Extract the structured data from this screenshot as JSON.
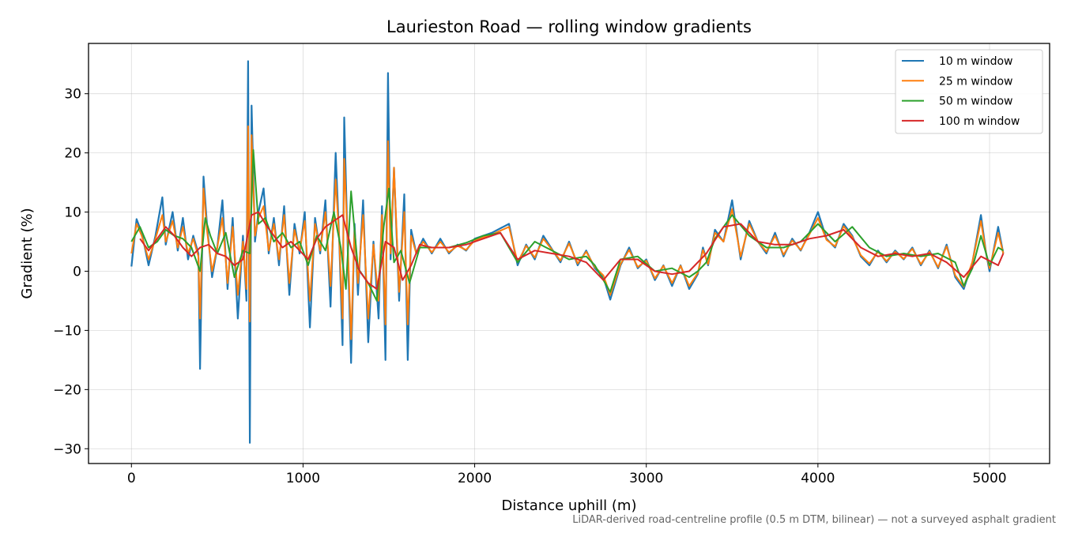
{
  "chart_data": {
    "type": "line",
    "title": "Laurieston Road — rolling window gradients",
    "xlabel": "Distance uphill (m)",
    "ylabel": "Gradient (%)",
    "xlim": [
      -250,
      5350
    ],
    "ylim": [
      -32.5,
      38.5
    ],
    "xticks": [
      0,
      1000,
      2000,
      3000,
      4000,
      5000
    ],
    "xtick_labels": [
      "0",
      "1000",
      "2000",
      "3000",
      "4000",
      "5000"
    ],
    "yticks": [
      -30,
      -20,
      -10,
      0,
      10,
      20,
      30
    ],
    "ytick_labels": [
      "−30",
      "−20",
      "−10",
      "0",
      "10",
      "20",
      "30"
    ],
    "grid": true,
    "legend_position": "top-right",
    "footnote": "LiDAR-derived road-centreline profile (0.5 m DTM, bilinear) — not a surveyed asphalt gradient",
    "series": [
      {
        "name": "10 m window",
        "color": "#1f77b4",
        "x": [
          0,
          30,
          60,
          100,
          140,
          180,
          200,
          240,
          270,
          300,
          330,
          360,
          390,
          400,
          420,
          440,
          470,
          500,
          530,
          560,
          590,
          620,
          650,
          670,
          680,
          690,
          700,
          720,
          740,
          770,
          800,
          830,
          860,
          890,
          920,
          950,
          980,
          1010,
          1040,
          1070,
          1100,
          1130,
          1160,
          1190,
          1210,
          1230,
          1240,
          1260,
          1280,
          1300,
          1320,
          1350,
          1380,
          1410,
          1440,
          1460,
          1480,
          1495,
          1510,
          1530,
          1560,
          1590,
          1610,
          1630,
          1660,
          1700,
          1750,
          1800,
          1850,
          1900,
          1950,
          2000,
          2100,
          2200,
          2250,
          2300,
          2350,
          2400,
          2500,
          2550,
          2600,
          2650,
          2700,
          2750,
          2790,
          2850,
          2900,
          2950,
          3000,
          3050,
          3100,
          3150,
          3200,
          3250,
          3300,
          3330,
          3360,
          3400,
          3450,
          3500,
          3550,
          3600,
          3650,
          3700,
          3750,
          3800,
          3850,
          3900,
          3950,
          4000,
          4050,
          4100,
          4150,
          4200,
          4250,
          4300,
          4350,
          4400,
          4450,
          4500,
          4550,
          4600,
          4650,
          4700,
          4750,
          4800,
          4850,
          4900,
          4950,
          4980,
          5000,
          5050,
          5080
        ],
        "values": [
          0.8,
          8.8,
          6.5,
          1.0,
          6.0,
          12.5,
          4.5,
          10.0,
          3.5,
          9.0,
          2.0,
          6.0,
          3.0,
          -16.5,
          16.0,
          8.0,
          -1.0,
          4.0,
          12.0,
          -3.0,
          9.0,
          -8.0,
          6.0,
          -5.0,
          35.5,
          -29.0,
          28.0,
          5.0,
          10.0,
          14.0,
          3.0,
          9.0,
          1.0,
          11.0,
          -4.0,
          8.0,
          3.0,
          10.0,
          -9.5,
          9.0,
          3.0,
          12.0,
          -6.0,
          20.0,
          6.0,
          -12.5,
          26.0,
          4.0,
          -15.5,
          8.0,
          -4.0,
          12.0,
          -12.0,
          5.0,
          -8.0,
          11.0,
          -15.0,
          33.5,
          2.0,
          17.5,
          -5.0,
          13.0,
          -15.0,
          7.0,
          3.0,
          5.5,
          3.0,
          5.5,
          3.0,
          4.5,
          3.5,
          5.5,
          6.5,
          8.0,
          1.0,
          4.5,
          2.0,
          6.0,
          1.5,
          5.0,
          1.0,
          3.5,
          0.5,
          -1.0,
          -4.8,
          1.0,
          4.0,
          0.5,
          2.0,
          -1.5,
          1.0,
          -2.5,
          1.0,
          -3.0,
          -0.5,
          4.0,
          1.0,
          7.0,
          5.0,
          12.0,
          2.0,
          8.5,
          5.0,
          3.0,
          6.5,
          2.5,
          5.5,
          3.5,
          6.5,
          10.0,
          5.5,
          4.0,
          8.0,
          6.0,
          2.5,
          1.0,
          3.5,
          1.5,
          3.5,
          2.0,
          4.0,
          1.0,
          3.5,
          0.5,
          4.5,
          -1.0,
          -3.0,
          1.5,
          9.5,
          3.0,
          0.0,
          7.5,
          3.0
        ]
      },
      {
        "name": "25 m window",
        "color": "#ff7f0e",
        "x": [
          0,
          30,
          60,
          100,
          140,
          180,
          200,
          240,
          270,
          300,
          330,
          360,
          390,
          400,
          420,
          440,
          470,
          500,
          530,
          560,
          590,
          620,
          650,
          670,
          680,
          690,
          700,
          720,
          740,
          770,
          800,
          830,
          860,
          890,
          920,
          950,
          980,
          1010,
          1040,
          1070,
          1100,
          1130,
          1160,
          1190,
          1210,
          1230,
          1240,
          1260,
          1280,
          1300,
          1320,
          1350,
          1380,
          1410,
          1440,
          1460,
          1480,
          1495,
          1510,
          1530,
          1560,
          1590,
          1610,
          1630,
          1660,
          1700,
          1750,
          1800,
          1850,
          1900,
          1950,
          2000,
          2100,
          2200,
          2250,
          2300,
          2350,
          2400,
          2500,
          2550,
          2600,
          2650,
          2700,
          2750,
          2790,
          2850,
          2900,
          2950,
          3000,
          3050,
          3100,
          3150,
          3200,
          3250,
          3300,
          3330,
          3360,
          3400,
          3450,
          3500,
          3550,
          3600,
          3650,
          3700,
          3750,
          3800,
          3850,
          3900,
          3950,
          4000,
          4050,
          4100,
          4150,
          4200,
          4250,
          4300,
          4350,
          4400,
          4450,
          4500,
          4550,
          4600,
          4650,
          4700,
          4750,
          4800,
          4850,
          4900,
          4950,
          4980,
          5000,
          5050,
          5080
        ],
        "values": [
          3.0,
          8.0,
          6.0,
          2.0,
          5.5,
          9.5,
          5.0,
          8.5,
          4.0,
          7.5,
          3.0,
          5.5,
          2.5,
          -8.0,
          14.0,
          7.0,
          0.0,
          4.0,
          9.0,
          -2.0,
          7.5,
          -4.0,
          5.0,
          -3.0,
          24.5,
          -8.5,
          23.0,
          6.0,
          9.0,
          11.0,
          3.5,
          8.0,
          2.0,
          9.5,
          -2.0,
          7.0,
          3.5,
          8.5,
          -5.0,
          8.0,
          3.5,
          10.0,
          -2.5,
          15.5,
          6.0,
          -8.0,
          19.0,
          5.0,
          -11.5,
          7.0,
          -2.0,
          9.5,
          -8.0,
          4.5,
          -5.0,
          9.5,
          -9.0,
          22.0,
          3.0,
          17.5,
          -3.5,
          10.0,
          -9.0,
          6.0,
          3.0,
          5.0,
          3.2,
          5.0,
          3.2,
          4.3,
          3.6,
          5.2,
          6.2,
          7.5,
          1.5,
          4.3,
          2.3,
          5.5,
          1.8,
          4.7,
          1.3,
          3.3,
          0.7,
          -0.7,
          -4.0,
          1.2,
          3.6,
          0.7,
          1.8,
          -1.2,
          0.9,
          -2.0,
          0.9,
          -2.5,
          -0.3,
          3.6,
          1.2,
          6.5,
          5.0,
          10.5,
          2.5,
          8.0,
          5.0,
          3.3,
          6.0,
          2.8,
          5.2,
          3.6,
          6.2,
          9.0,
          5.3,
          4.2,
          7.6,
          5.8,
          2.7,
          1.3,
          3.3,
          1.7,
          3.3,
          2.1,
          3.8,
          1.2,
          3.3,
          0.7,
          4.2,
          -0.7,
          -2.6,
          1.6,
          8.5,
          3.0,
          0.5,
          6.5,
          3.0
        ]
      },
      {
        "name": "50 m window",
        "color": "#2ca02c",
        "x": [
          0,
          50,
          100,
          150,
          200,
          250,
          300,
          350,
          400,
          430,
          460,
          500,
          550,
          600,
          650,
          690,
          710,
          740,
          780,
          830,
          880,
          930,
          980,
          1030,
          1080,
          1130,
          1180,
          1220,
          1250,
          1280,
          1320,
          1380,
          1430,
          1470,
          1500,
          1530,
          1570,
          1620,
          1680,
          1750,
          1850,
          1950,
          2050,
          2150,
          2250,
          2350,
          2450,
          2550,
          2650,
          2700,
          2790,
          2850,
          2950,
          3050,
          3150,
          3250,
          3300,
          3350,
          3400,
          3500,
          3600,
          3700,
          3800,
          3900,
          4000,
          4100,
          4200,
          4300,
          4400,
          4500,
          4600,
          4700,
          4800,
          4850,
          4900,
          4950,
          5000,
          5050,
          5080
        ],
        "values": [
          5.0,
          7.5,
          4.0,
          5.0,
          7.0,
          6.0,
          5.5,
          4.0,
          0.0,
          9.0,
          6.0,
          3.0,
          6.5,
          -1.0,
          3.5,
          3.0,
          20.5,
          8.0,
          9.0,
          5.0,
          6.5,
          4.0,
          5.0,
          1.0,
          6.0,
          3.5,
          10.0,
          4.0,
          -3.0,
          13.5,
          0.5,
          -2.0,
          -5.0,
          7.5,
          14.0,
          1.5,
          3.5,
          -2.0,
          4.0,
          4.0,
          4.0,
          4.8,
          6.0,
          6.5,
          1.5,
          5.0,
          3.5,
          2.0,
          2.5,
          1.0,
          -3.5,
          2.0,
          2.5,
          0.0,
          0.5,
          -1.0,
          0.0,
          1.5,
          5.5,
          9.5,
          6.0,
          4.0,
          4.0,
          5.0,
          8.0,
          5.0,
          7.5,
          4.0,
          2.5,
          3.0,
          2.5,
          3.0,
          1.5,
          -2.5,
          0.5,
          6.0,
          1.0,
          4.0,
          3.5
        ]
      },
      {
        "name": "100 m window",
        "color": "#d62728",
        "x": [
          50,
          100,
          150,
          200,
          250,
          300,
          350,
          400,
          450,
          500,
          550,
          600,
          650,
          700,
          740,
          780,
          830,
          880,
          930,
          980,
          1030,
          1080,
          1130,
          1180,
          1230,
          1280,
          1330,
          1380,
          1430,
          1480,
          1530,
          1580,
          1630,
          1680,
          1750,
          1850,
          1950,
          2050,
          2150,
          2250,
          2350,
          2450,
          2550,
          2650,
          2750,
          2850,
          2950,
          3050,
          3150,
          3250,
          3350,
          3450,
          3550,
          3650,
          3750,
          3850,
          3950,
          4050,
          4150,
          4250,
          4350,
          4450,
          4550,
          4650,
          4750,
          4850,
          4950,
          5050,
          5080
        ],
        "values": [
          5.5,
          3.5,
          5.5,
          7.5,
          6.0,
          4.0,
          2.5,
          4.0,
          4.5,
          3.0,
          2.5,
          1.0,
          2.0,
          9.5,
          10.0,
          8.0,
          6.0,
          4.0,
          5.0,
          3.5,
          2.0,
          5.5,
          7.5,
          8.5,
          9.5,
          4.0,
          0.0,
          -2.0,
          -3.0,
          5.0,
          4.0,
          -1.5,
          1.0,
          4.5,
          4.0,
          4.0,
          4.5,
          5.5,
          6.5,
          2.0,
          3.5,
          3.0,
          2.5,
          1.5,
          -1.5,
          2.0,
          2.0,
          0.0,
          -0.5,
          0.0,
          3.0,
          7.5,
          8.0,
          5.0,
          4.5,
          4.5,
          5.5,
          6.0,
          7.0,
          4.0,
          2.5,
          3.0,
          2.5,
          3.0,
          1.5,
          -1.0,
          2.5,
          1.0,
          3.0
        ]
      }
    ]
  }
}
